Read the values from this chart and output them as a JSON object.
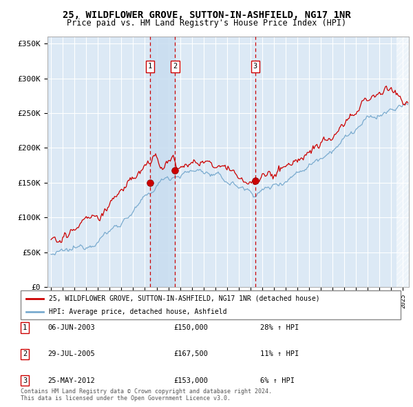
{
  "title": "25, WILDFLOWER GROVE, SUTTON-IN-ASHFIELD, NG17 1NR",
  "subtitle": "Price paid vs. HM Land Registry's House Price Index (HPI)",
  "title_fontsize": 10,
  "subtitle_fontsize": 8.5,
  "ylim": [
    0,
    360000
  ],
  "yticks": [
    0,
    50000,
    100000,
    150000,
    200000,
    250000,
    300000,
    350000
  ],
  "ytick_labels": [
    "£0",
    "£50K",
    "£100K",
    "£150K",
    "£200K",
    "£250K",
    "£300K",
    "£350K"
  ],
  "plot_bg_color": "#dce9f5",
  "grid_color": "#ffffff",
  "red_line_color": "#cc0000",
  "blue_line_color": "#7aabcf",
  "sale_marker_color": "#cc0000",
  "sale1_date": 2003.43,
  "sale1_price": 150000,
  "sale2_date": 2005.58,
  "sale2_price": 167500,
  "sale3_date": 2012.41,
  "sale3_price": 153000,
  "vline1_date": 2003.43,
  "vline2_date": 2005.58,
  "vline3_date": 2012.41,
  "shaded_region_start": 2003.43,
  "shaded_region_end": 2005.58,
  "legend_red_label": "25, WILDFLOWER GROVE, SUTTON-IN-ASHFIELD, NG17 1NR (detached house)",
  "legend_blue_label": "HPI: Average price, detached house, Ashfield",
  "table_rows": [
    {
      "num": "1",
      "date": "06-JUN-2003",
      "price": "£150,000",
      "change": "28% ↑ HPI"
    },
    {
      "num": "2",
      "date": "29-JUL-2005",
      "price": "£167,500",
      "change": "11% ↑ HPI"
    },
    {
      "num": "3",
      "date": "25-MAY-2012",
      "price": "£153,000",
      "change": "6% ↑ HPI"
    }
  ],
  "footnote": "Contains HM Land Registry data © Crown copyright and database right 2024.\nThis data is licensed under the Open Government Licence v3.0.",
  "xmin": 1994.7,
  "xmax": 2025.5
}
